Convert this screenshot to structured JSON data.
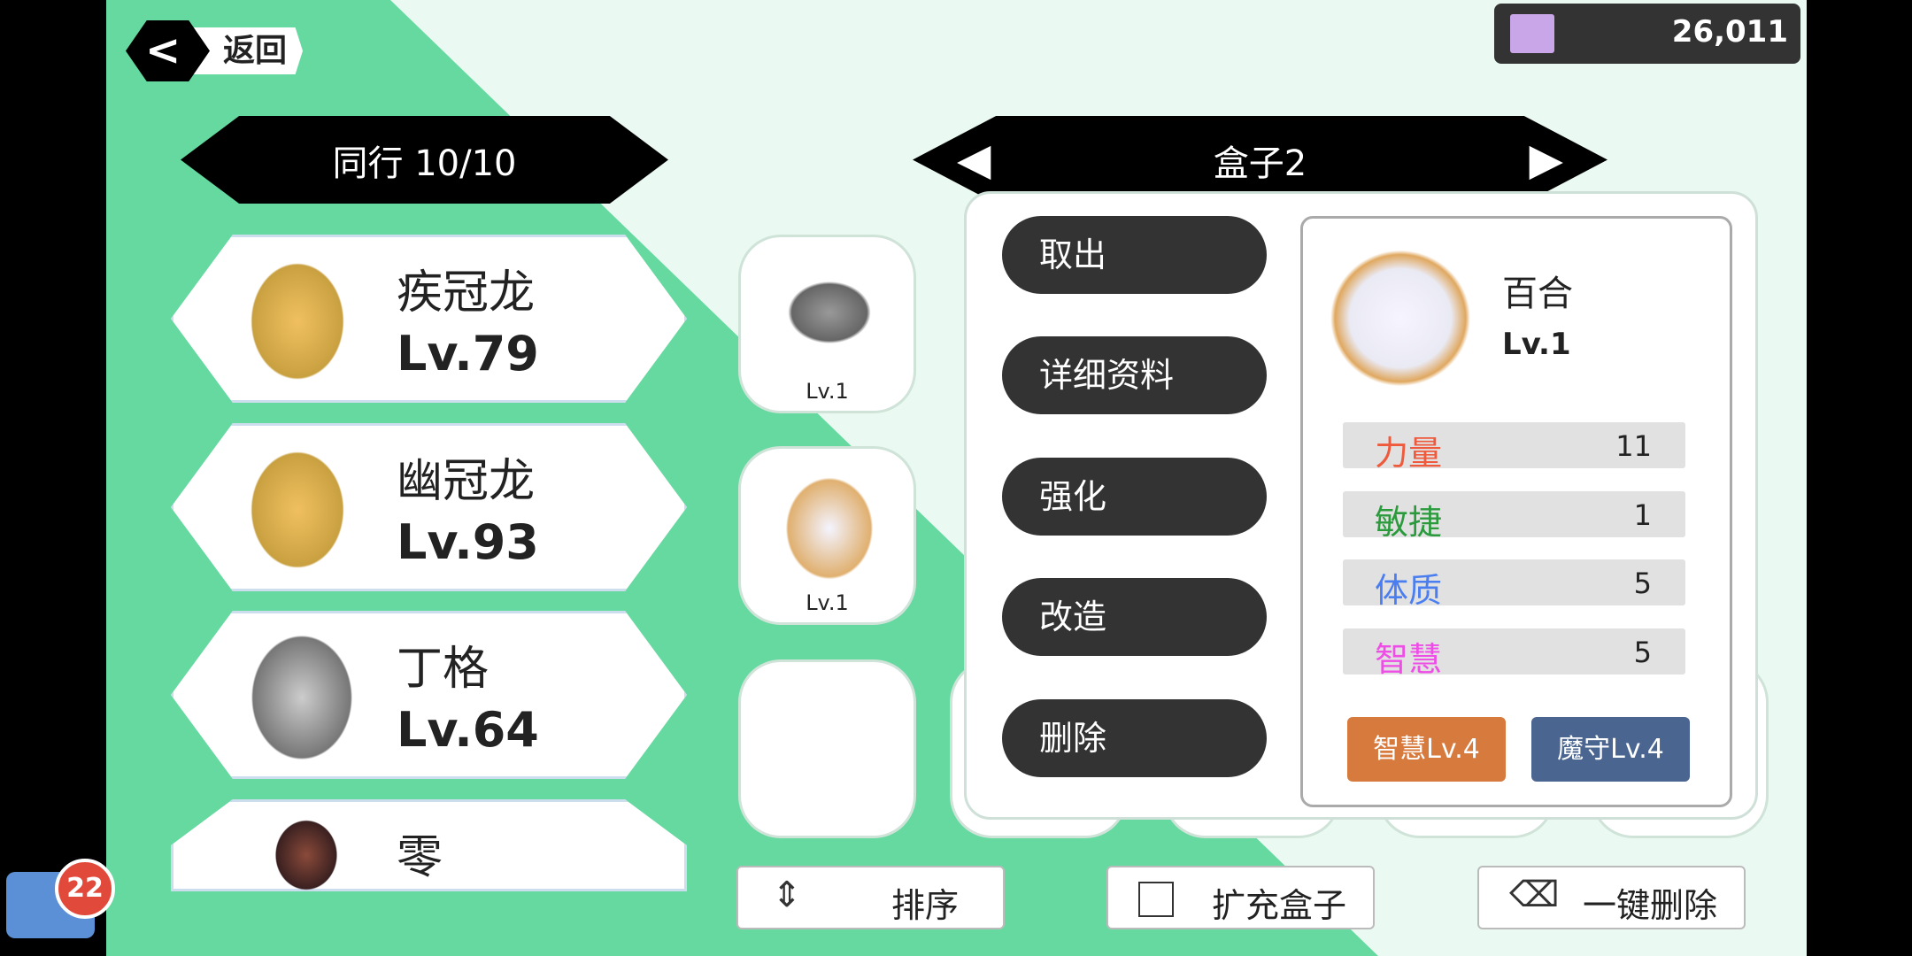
{
  "header": {
    "back_label": "返回",
    "currency": {
      "icon": "ticket-icon",
      "value": "26,011"
    }
  },
  "party": {
    "title": "同行 10/10",
    "members": [
      {
        "name": "疾冠龙",
        "level": "Lv.79"
      },
      {
        "name": "幽冠龙",
        "level": "Lv.93"
      },
      {
        "name": "丁格",
        "level": "Lv.64"
      },
      {
        "name": "零",
        "level": ""
      }
    ]
  },
  "box": {
    "title": "盒子2",
    "cells": [
      {
        "level": "Lv.1"
      },
      {
        "level": "Lv.1"
      },
      {
        "level": ""
      }
    ]
  },
  "menu": {
    "actions": [
      "取出",
      "详细资料",
      "强化",
      "改造",
      "删除"
    ]
  },
  "detail": {
    "name": "百合",
    "level": "Lv.1",
    "stats": [
      {
        "label": "力量",
        "value": "11",
        "color": "#ef5a3c"
      },
      {
        "label": "敏捷",
        "value": "1",
        "color": "#2a9a3c"
      },
      {
        "label": "体质",
        "value": "5",
        "color": "#4a7ef0"
      },
      {
        "label": "智慧",
        "value": "5",
        "color": "#ee4de6"
      }
    ],
    "skills": [
      {
        "label": "智慧Lv.4",
        "color": "#d77a3e"
      },
      {
        "label": "魔守Lv.4",
        "color": "#4a6590"
      }
    ]
  },
  "bottom": {
    "sort": "排序",
    "expand": "扩充盒子",
    "delete_all": "一键删除"
  },
  "chat": {
    "badge": "22"
  },
  "colors": {
    "green": "#66d9a0",
    "mint": "#eaf9f2",
    "dark": "#333333"
  }
}
